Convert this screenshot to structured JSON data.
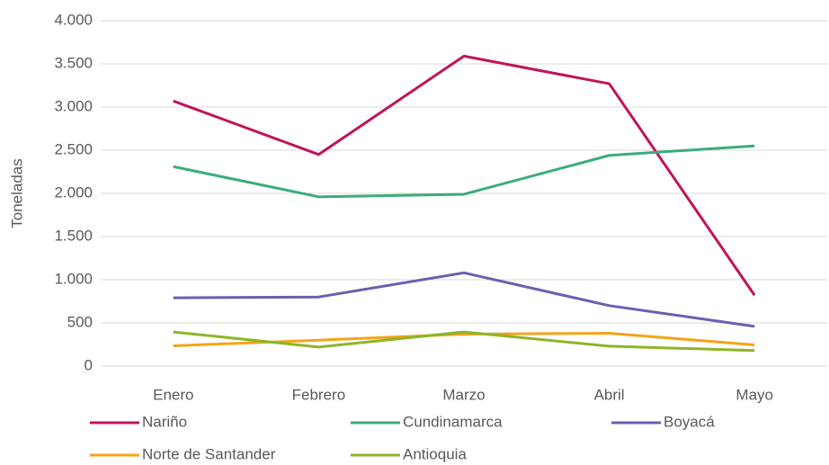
{
  "chart_data": {
    "type": "line",
    "y_label": "Toneladas",
    "categories": [
      "Enero",
      "Febrero",
      "Marzo",
      "Abril",
      "Mayo"
    ],
    "series": [
      {
        "name": "Nariño",
        "color": "#c0145a",
        "values": [
          3070,
          2450,
          3590,
          3270,
          820
        ]
      },
      {
        "name": "Cundinamarca",
        "color": "#3aad7a",
        "values": [
          2310,
          1960,
          1990,
          2440,
          2550
        ]
      },
      {
        "name": "Boyacá",
        "color": "#6a5fb0",
        "values": [
          790,
          800,
          1080,
          700,
          460
        ]
      },
      {
        "name": "Norte de Santander",
        "color": "#f5a31a",
        "values": [
          235,
          300,
          370,
          380,
          245
        ]
      },
      {
        "name": "Antioquia",
        "color": "#8db52a",
        "values": [
          395,
          220,
          395,
          230,
          180
        ]
      }
    ],
    "ylim": [
      0,
      4000
    ],
    "yticks": [
      0,
      500,
      {
        "value": 1000,
        "label": "1.000"
      },
      {
        "value": 1500,
        "label": "1.500"
      },
      {
        "value": 2000,
        "label": "2.000"
      },
      {
        "value": 2500,
        "label": "2.500"
      },
      {
        "value": 3000,
        "label": "3.000"
      },
      {
        "value": 3500,
        "label": "3.500"
      },
      {
        "value": 4000,
        "label": "4.000"
      }
    ],
    "grid": true,
    "legend": "bottom"
  }
}
